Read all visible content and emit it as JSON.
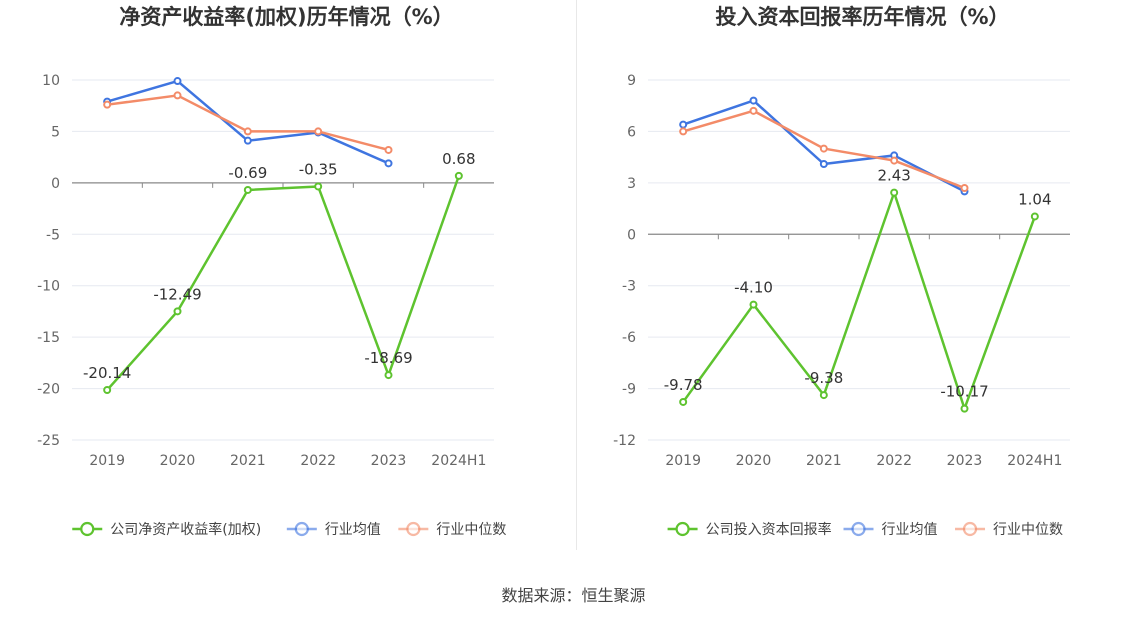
{
  "chart_data": [
    {
      "type": "line",
      "title": "净资产收益率(加权)历年情况（%）",
      "categories": [
        "2019",
        "2020",
        "2021",
        "2022",
        "2023",
        "2024H1"
      ],
      "ylim": [
        -25,
        10
      ],
      "yticks": [
        10,
        5,
        0,
        -5,
        -10,
        -15,
        -20,
        -25
      ],
      "series": [
        {
          "name": "公司净资产收益率(加权)",
          "color": "#5ec32f",
          "values": [
            -20.14,
            -12.49,
            -0.69,
            -0.35,
            -18.69,
            0.68
          ],
          "labels": [
            "-20.14",
            "-12.49",
            "-0.69",
            "-0.35",
            "-18.69",
            "0.68"
          ]
        },
        {
          "name": "行业均值",
          "color": "#3f75e0",
          "values": [
            7.9,
            9.9,
            4.1,
            4.9,
            1.9,
            null
          ]
        },
        {
          "name": "行业中位数",
          "color": "#f38b68",
          "values": [
            7.6,
            8.5,
            5.0,
            5.0,
            3.2,
            null
          ]
        }
      ]
    },
    {
      "type": "line",
      "title": "投入资本回报率历年情况（%）",
      "categories": [
        "2019",
        "2020",
        "2021",
        "2022",
        "2023",
        "2024H1"
      ],
      "ylim": [
        -12,
        9
      ],
      "yticks": [
        9,
        6,
        3,
        0,
        -3,
        -6,
        -9,
        -12
      ],
      "series": [
        {
          "name": "公司投入资本回报率",
          "color": "#5ec32f",
          "values": [
            -9.78,
            -4.1,
            -9.38,
            2.43,
            -10.17,
            1.04
          ],
          "labels": [
            "-9.78",
            "-4.10",
            "-9.38",
            "2.43",
            "-10.17",
            "1.04"
          ]
        },
        {
          "name": "行业均值",
          "color": "#3f75e0",
          "values": [
            6.4,
            7.8,
            4.1,
            4.6,
            2.5,
            null
          ]
        },
        {
          "name": "行业中位数",
          "color": "#f38b68",
          "values": [
            6.0,
            7.2,
            5.0,
            4.3,
            2.7,
            null
          ]
        }
      ]
    }
  ],
  "footer": {
    "source": "数据来源：恒生聚源"
  }
}
